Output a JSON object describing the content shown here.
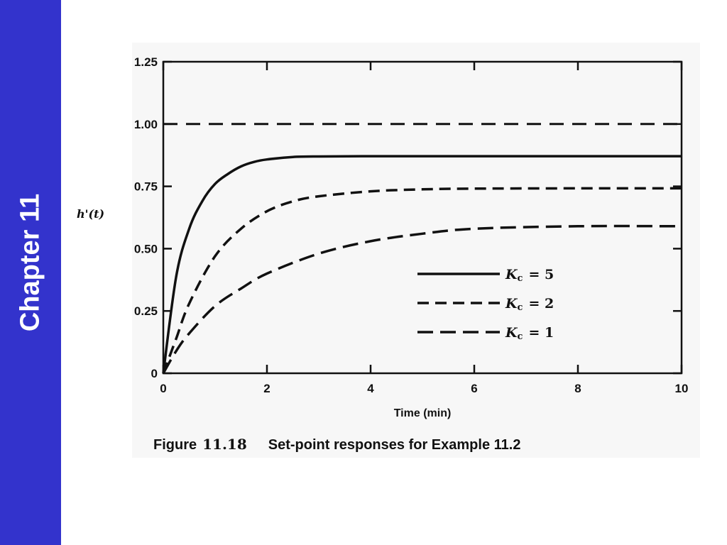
{
  "sidebar": {
    "title": "Chapter 11",
    "color": "#3333cc"
  },
  "caption": {
    "figure_word": "Figure",
    "figure_number": "11.18",
    "text": "Set-point responses for Example 11.2"
  },
  "chart_data": {
    "type": "line",
    "title": "",
    "xlabel": "Time (min)",
    "ylabel": "h'(t)",
    "xlim": [
      0,
      10
    ],
    "ylim": [
      0,
      1.25
    ],
    "x_ticks": [
      0,
      2,
      4,
      6,
      8,
      10
    ],
    "x_tick_labels": [
      "0",
      "2",
      "4",
      "6",
      "8",
      "10"
    ],
    "y_ticks": [
      0,
      0.25,
      0.5,
      0.75,
      1.0,
      1.25
    ],
    "y_tick_labels": [
      "0",
      "0.25",
      "0.50",
      "0.75",
      "1.00",
      "1.25"
    ],
    "grid": false,
    "legend_position": "lower-right",
    "reference_line": {
      "y": 1.0,
      "style": "dashed"
    },
    "series": [
      {
        "name": "K_c = 5",
        "legend_var": "K",
        "legend_sub": "c",
        "legend_value": "= 5",
        "style": "solid",
        "x": [
          0,
          0.25,
          0.5,
          0.75,
          1.0,
          1.25,
          1.5,
          1.75,
          2.0,
          2.5,
          3,
          4,
          6,
          8,
          10
        ],
        "y": [
          0,
          0.39,
          0.58,
          0.69,
          0.76,
          0.8,
          0.83,
          0.848,
          0.858,
          0.868,
          0.87,
          0.871,
          0.871,
          0.871,
          0.871
        ]
      },
      {
        "name": "K_c = 2",
        "legend_var": "K",
        "legend_sub": "c",
        "legend_value": "= 2",
        "style": "dashed",
        "x": [
          0,
          0.25,
          0.5,
          1.0,
          1.5,
          2.0,
          2.5,
          3,
          4,
          5,
          6,
          8,
          10
        ],
        "y": [
          0,
          0.14,
          0.28,
          0.47,
          0.58,
          0.65,
          0.69,
          0.71,
          0.73,
          0.738,
          0.741,
          0.742,
          0.742
        ]
      },
      {
        "name": "K_c = 1",
        "legend_var": "K",
        "legend_sub": "c",
        "legend_value": "= 1",
        "style": "longdash",
        "x": [
          0,
          0.25,
          0.5,
          1.0,
          1.5,
          2.0,
          3,
          4,
          5,
          6,
          8,
          10
        ],
        "y": [
          0,
          0.09,
          0.16,
          0.27,
          0.34,
          0.4,
          0.48,
          0.53,
          0.56,
          0.58,
          0.59,
          0.59
        ]
      }
    ]
  }
}
